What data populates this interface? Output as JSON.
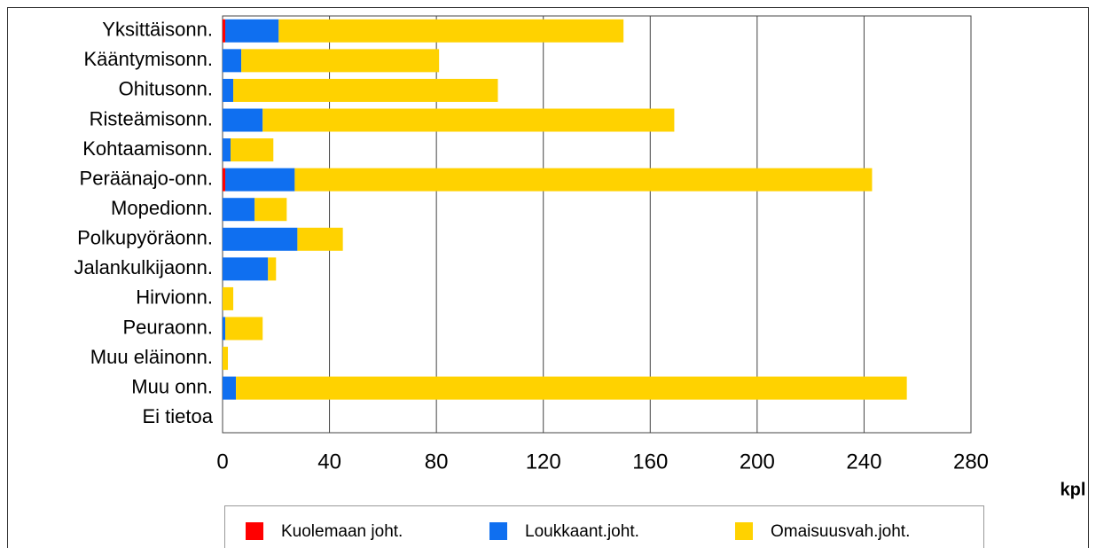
{
  "chart_data": {
    "type": "stacked-barh",
    "xlabel": "kpl",
    "categories": [
      "Yksittäisonn.",
      "Kääntymisonn.",
      "Ohitusonn.",
      "Risteämisonn.",
      "Kohtaamisonn.",
      "Peräänajo-onn.",
      "Mopedionn.",
      "Polkupyöräonn.",
      "Jalankulkijaonn.",
      "Hirvionn.",
      "Peuraonn.",
      "Muu eläinonn.",
      "Muu onn.",
      "Ei tietoa"
    ],
    "series": [
      {
        "name": "Kuolemaan joht.",
        "color": "#ff0000",
        "values": [
          1,
          0,
          0,
          0,
          0,
          1,
          0,
          0,
          0,
          0,
          0,
          0,
          0,
          0
        ]
      },
      {
        "name": "Loukkaant.joht.",
        "color": "#0f6ff0",
        "values": [
          20,
          7,
          4,
          15,
          3,
          26,
          12,
          28,
          17,
          0,
          1,
          0,
          5,
          0
        ]
      },
      {
        "name": "Omaisuusvah.joht.",
        "color": "#ffd200",
        "values": [
          129,
          74,
          99,
          154,
          16,
          216,
          12,
          17,
          3,
          4,
          14,
          2,
          251,
          0
        ]
      }
    ],
    "xlim": [
      0,
      280
    ],
    "xticks": [
      0,
      40,
      80,
      120,
      160,
      200,
      240,
      280
    ],
    "grid": true
  }
}
